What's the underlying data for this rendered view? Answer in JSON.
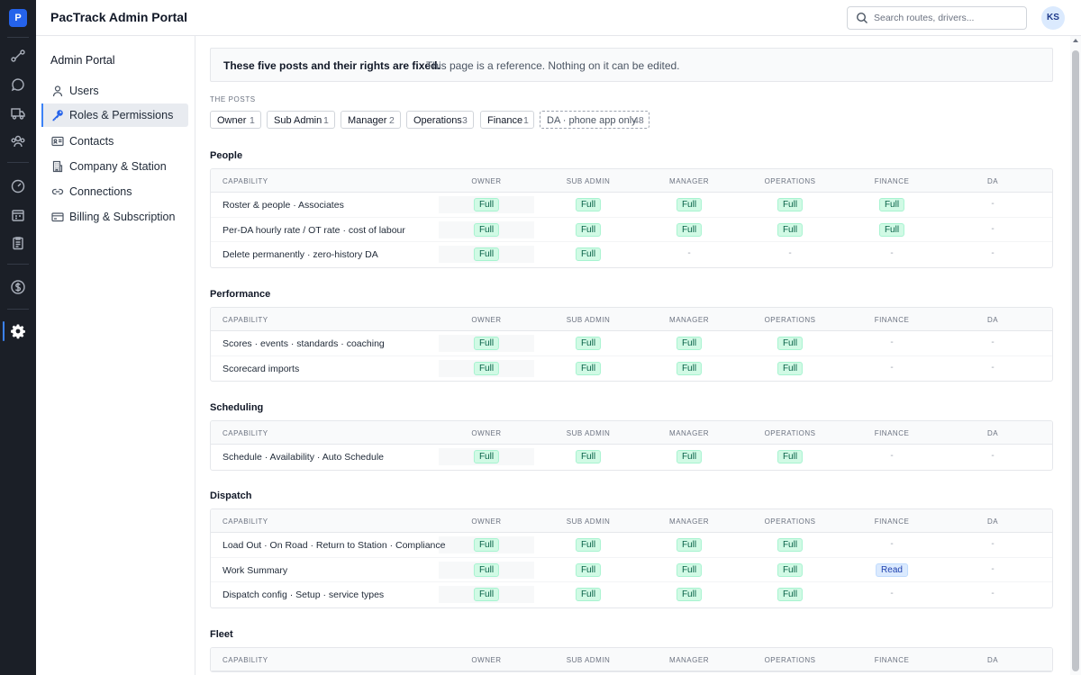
{
  "header": {
    "app_title": "PacTrack Admin Portal",
    "search_placeholder": "Search routes, drivers...",
    "avatar_initials": "KS"
  },
  "rail": {
    "logo_letter": "P",
    "icons": [
      "route-icon",
      "chat-icon",
      "truck-icon",
      "team-icon",
      "gauge-icon",
      "calendar-icon",
      "clipboard-icon",
      "dollar-icon",
      "gear-icon"
    ],
    "active_icon": "gear-icon"
  },
  "sidebar": {
    "title": "Admin Portal",
    "items": [
      {
        "label": "Users",
        "icon": "user-icon",
        "active": false
      },
      {
        "label": "Roles & Permissions",
        "icon": "key-icon",
        "active": true
      },
      {
        "label": "Contacts",
        "icon": "id-card-icon",
        "active": false
      },
      {
        "label": "Company & Station",
        "icon": "building-icon",
        "active": false
      },
      {
        "label": "Connections",
        "icon": "link-icon",
        "active": false
      },
      {
        "label": "Billing & Subscription",
        "icon": "credit-card-icon",
        "active": false
      }
    ]
  },
  "notice": {
    "strong": "These five posts and their rights are fixed.",
    "rest": "This page is a reference. Nothing on it can be edited."
  },
  "posts": {
    "label": "THE POSTS",
    "items": [
      {
        "name": "Owner",
        "count": "1"
      },
      {
        "name": "Sub Admin",
        "count": "1"
      },
      {
        "name": "Manager",
        "count": "2"
      },
      {
        "name": "Operations",
        "count": "3"
      },
      {
        "name": "Finance",
        "count": "1"
      },
      {
        "name": "DA · phone app only",
        "count": "48"
      }
    ]
  },
  "columns": [
    "CAPABILITY",
    "OWNER",
    "SUB ADMIN",
    "MANAGER",
    "OPERATIONS",
    "FINANCE",
    "DA"
  ],
  "sections": [
    {
      "title": "People",
      "rows": [
        {
          "capability": "Roster & people · Associates",
          "cells": [
            "Full",
            "Full",
            "Full",
            "Full",
            "Full",
            "-"
          ]
        },
        {
          "capability": "Per-DA hourly rate / OT rate · cost of labour",
          "cells": [
            "Full",
            "Full",
            "Full",
            "Full",
            "Full",
            "-"
          ]
        },
        {
          "capability": "Delete permanently · zero-history DA",
          "cells": [
            "Full",
            "Full",
            "-",
            "-",
            "-",
            "-"
          ]
        }
      ]
    },
    {
      "title": "Performance",
      "rows": [
        {
          "capability": "Scores · events · standards · coaching",
          "cells": [
            "Full",
            "Full",
            "Full",
            "Full",
            "-",
            "-"
          ]
        },
        {
          "capability": "Scorecard imports",
          "cells": [
            "Full",
            "Full",
            "Full",
            "Full",
            "-",
            "-"
          ]
        }
      ]
    },
    {
      "title": "Scheduling",
      "rows": [
        {
          "capability": "Schedule · Availability · Auto Schedule",
          "cells": [
            "Full",
            "Full",
            "Full",
            "Full",
            "-",
            "-"
          ]
        }
      ]
    },
    {
      "title": "Dispatch",
      "rows": [
        {
          "capability": "Load Out · On Road · Return to Station · Compliance",
          "cells": [
            "Full",
            "Full",
            "Full",
            "Full",
            "-",
            "-"
          ]
        },
        {
          "capability": "Work Summary",
          "cells": [
            "Full",
            "Full",
            "Full",
            "Full",
            "Read",
            "-"
          ]
        },
        {
          "capability": "Dispatch config · Setup · service types",
          "cells": [
            "Full",
            "Full",
            "Full",
            "Full",
            "-",
            "-"
          ]
        }
      ]
    },
    {
      "title": "Fleet",
      "rows": []
    }
  ],
  "colors": {
    "rail_bg": "#1b1f27",
    "accent": "#3b82f6",
    "full_bg": "#d1fae5",
    "full_text": "#065f46",
    "read_bg": "#dbeafe",
    "read_text": "#1e40af"
  }
}
